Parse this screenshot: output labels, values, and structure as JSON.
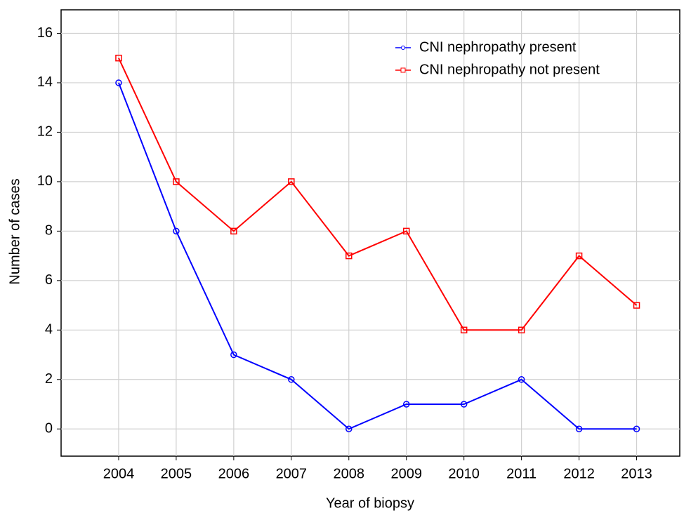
{
  "chart_data": {
    "type": "line",
    "x_label": "Year of biopsy",
    "y_label": "Number of cases",
    "x": [
      2004,
      2005,
      2006,
      2007,
      2008,
      2009,
      2010,
      2011,
      2012,
      2013
    ],
    "series": [
      {
        "name": "CNI nephropathy present",
        "color": "#0000ff",
        "marker": "circle",
        "values": [
          14,
          8,
          3,
          2,
          0,
          1,
          1,
          2,
          0,
          0
        ]
      },
      {
        "name": "CNI nephropathy not present",
        "color": "#ff0000",
        "marker": "square",
        "values": [
          15,
          10,
          8,
          10,
          7,
          8,
          4,
          4,
          7,
          5
        ]
      }
    ],
    "xlim": [
      2003,
      2013.75
    ],
    "xticks": [
      2004,
      2005,
      2006,
      2007,
      2008,
      2009,
      2010,
      2011,
      2012,
      2013
    ],
    "ylim": [
      -1.1,
      16.95
    ],
    "yticks": [
      0,
      2,
      4,
      6,
      8,
      10,
      12,
      14,
      16
    ],
    "grid": true,
    "legend": "top-right"
  }
}
